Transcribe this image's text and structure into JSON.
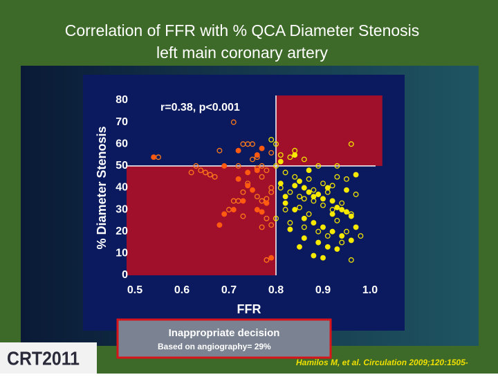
{
  "slide": {
    "title_lines": [
      "Correlation of FFR with % QCA Diameter Stenosis",
      "left main coronary artery"
    ],
    "box_title": "Inappropriate decision",
    "box_subtitle": "Based on angiography= 29%",
    "logo": "CRT2011",
    "citation": "Hamilos M, et al. Circulation 2009;120:1505-"
  },
  "chart_data": {
    "type": "scatter",
    "annotation": "r=0.38, p<0.001",
    "x_label": "FFR",
    "y_label": "% Diameter Stenosis",
    "xlim": [
      0.5,
      1.0
    ],
    "xticks": [
      0.5,
      0.6,
      0.7,
      0.8,
      0.9,
      {
        "value": 1.0,
        "label": "1.0"
      }
    ],
    "ylim": [
      0,
      80
    ],
    "yticks": [
      0,
      10,
      20,
      30,
      40,
      50,
      60,
      70,
      80
    ],
    "thresholds": {
      "x": 0.8,
      "y": 50
    },
    "region_color": "#a0102a",
    "series": [
      {
        "color": "#ff7a1a",
        "filled": false,
        "x": [
          0.55,
          0.71,
          0.68,
          0.63,
          0.64,
          0.65,
          0.66,
          0.67,
          0.62,
          0.73,
          0.74,
          0.75,
          0.76,
          0.75,
          0.77,
          0.76,
          0.77,
          0.74,
          0.73,
          0.72,
          0.71,
          0.76,
          0.77,
          0.79,
          0.78,
          0.78,
          0.79,
          0.77,
          0.73,
          0.78,
          0.79,
          0.7,
          0.78,
          0.79,
          0.72
        ],
        "values": [
          54,
          70,
          57,
          50,
          48,
          47,
          46,
          45,
          47,
          60,
          60,
          60,
          54,
          53,
          50,
          49,
          45,
          42,
          38,
          34,
          34,
          36,
          34,
          40,
          35,
          26,
          23,
          22,
          27,
          7,
          38,
          30,
          48,
          56,
          50
        ]
      },
      {
        "color": "#ff5a10",
        "filled": true,
        "x": [
          0.54,
          0.69,
          0.72,
          0.74,
          0.76,
          0.75,
          0.73,
          0.71,
          0.69,
          0.68,
          0.76,
          0.77,
          0.78,
          0.79,
          0.77,
          0.74,
          0.72,
          0.76
        ],
        "values": [
          54,
          50,
          44,
          41,
          48,
          39,
          34,
          30,
          28,
          23,
          30,
          29,
          33,
          8,
          58,
          47,
          57,
          55
        ]
      },
      {
        "color": "#f2e600",
        "filled": false,
        "x": [
          0.79,
          0.8,
          0.81,
          0.83,
          0.86,
          0.89,
          0.93,
          0.96,
          0.82,
          0.84,
          0.87,
          0.9,
          0.93,
          0.95,
          0.97,
          0.81,
          0.83,
          0.85,
          0.86,
          0.88,
          0.9,
          0.92,
          0.94,
          0.96,
          0.98,
          0.96,
          0.8,
          0.83,
          0.86,
          0.89,
          0.91,
          0.94,
          0.87,
          0.82,
          0.88,
          0.91,
          0.93,
          0.95,
          0.85,
          0.92,
          0.8,
          0.84
        ],
        "values": [
          62,
          60,
          55,
          54,
          53,
          50,
          50,
          60,
          47,
          45,
          44,
          42,
          45,
          44,
          37,
          40,
          38,
          36,
          35,
          34,
          32,
          30,
          33,
          28,
          18,
          7,
          26,
          24,
          22,
          20,
          18,
          15,
          28,
          30,
          39,
          38,
          25,
          20,
          31,
          41,
          50,
          57
        ]
      },
      {
        "color": "#f7ea00",
        "filled": true,
        "x": [
          0.81,
          0.82,
          0.84,
          0.85,
          0.86,
          0.87,
          0.88,
          0.89,
          0.9,
          0.91,
          0.92,
          0.93,
          0.94,
          0.95,
          0.96,
          0.97,
          0.82,
          0.84,
          0.86,
          0.88,
          0.9,
          0.92,
          0.94,
          0.96,
          0.83,
          0.86,
          0.89,
          0.91,
          0.93,
          0.85,
          0.88,
          0.9,
          0.81,
          0.84,
          0.87,
          0.92,
          0.95,
          0.97
        ],
        "values": [
          42,
          36,
          41,
          43,
          40,
          38,
          36,
          37,
          35,
          40,
          34,
          31,
          30,
          29,
          27,
          22,
          33,
          30,
          26,
          24,
          22,
          20,
          18,
          16,
          21,
          17,
          15,
          13,
          12,
          13,
          9,
          8,
          52,
          55,
          48,
          28,
          39,
          46
        ]
      }
    ]
  }
}
